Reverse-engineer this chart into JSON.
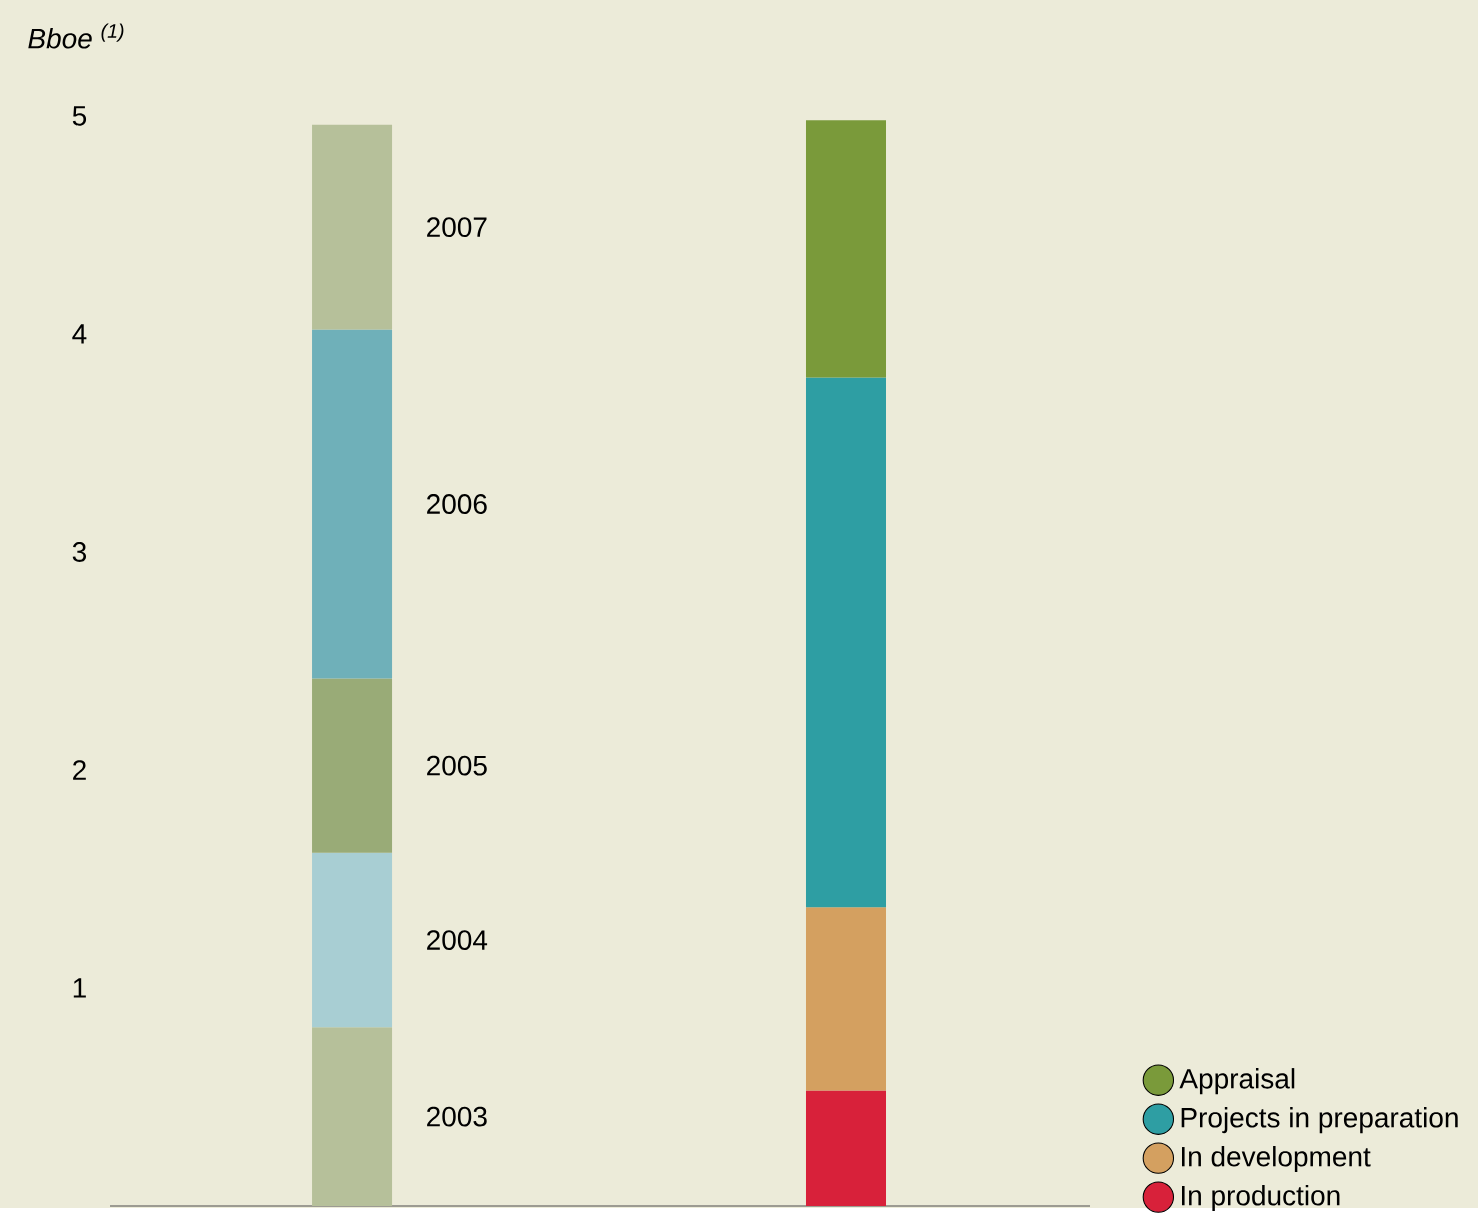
{
  "chart_data": {
    "type": "bar",
    "stacked": true,
    "ylabel": "Bboe $^{(1)}$",
    "categories": [
      null,
      null
    ],
    "series": [
      {
        "name": "2003",
        "color": "#b6c09a",
        "values": [
          0.82,
          null
        ]
      },
      {
        "name": "2004",
        "color": "#a8ced3",
        "values": [
          0.8,
          null
        ]
      },
      {
        "name": "2005",
        "color": "#99ab77",
        "values": [
          0.8,
          null
        ]
      },
      {
        "name": "2006",
        "color": "#6fb0b9",
        "values": [
          1.6,
          null
        ]
      },
      {
        "name": "2007",
        "color": "#b6c09a",
        "values": [
          0.94,
          null
        ]
      },
      {
        "name": "In production",
        "color": "#d8213a",
        "values": [
          null,
          0.53
        ]
      },
      {
        "name": "In development",
        "color": "#d4a060",
        "values": [
          null,
          0.84
        ]
      },
      {
        "name": "Projects in preparation",
        "color": "#2e9ea3",
        "values": [
          null,
          2.43
        ]
      },
      {
        "name": "Appraisal",
        "color": "#7a9a3a",
        "values": [
          null,
          1.18
        ]
      }
    ],
    "ylim": [
      0,
      5.53
    ],
    "yticks": [
      1,
      2,
      3,
      4,
      5
    ],
    "grid": false,
    "legend": "bottom right"
  }
}
